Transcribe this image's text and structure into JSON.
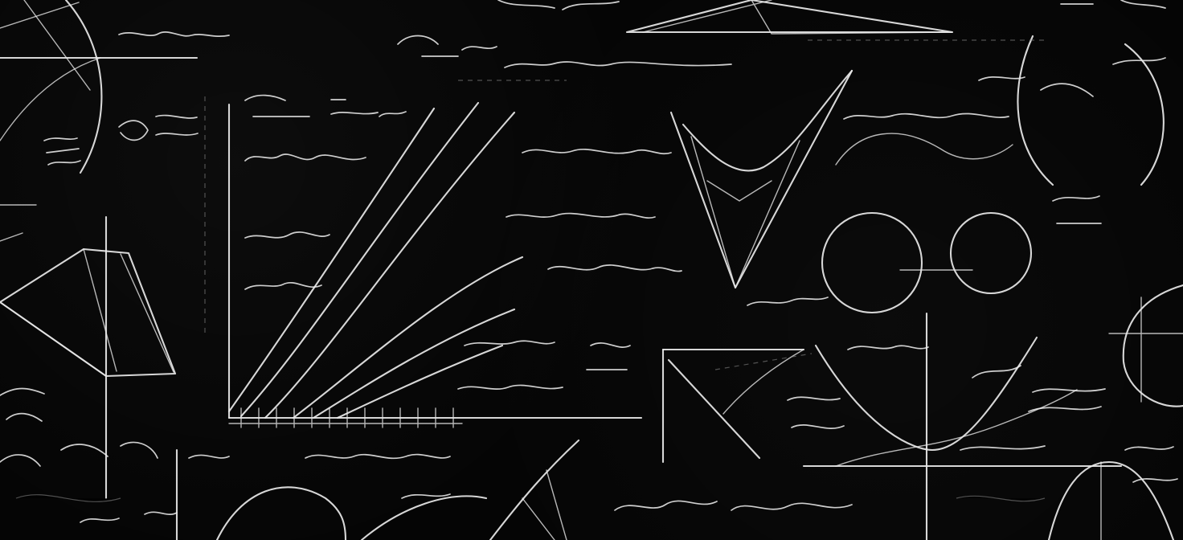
{
  "image": {
    "type": "chalkboard-math-doodles",
    "background_color": "#050505",
    "chalk_color": "#e9e9e9"
  }
}
